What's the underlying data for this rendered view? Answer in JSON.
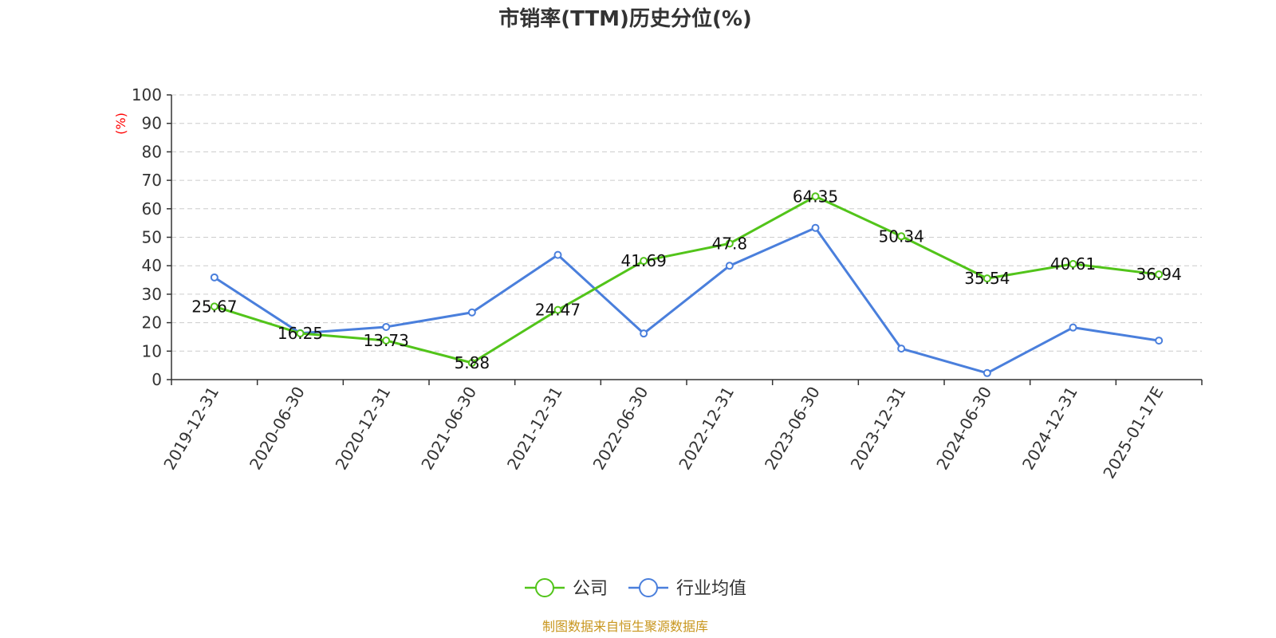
{
  "chart_data": {
    "type": "line",
    "title": "市销率(TTM)历史分位(%)",
    "ylabel": "(%)",
    "ylim": [
      0,
      100
    ],
    "yticks": [
      0,
      10,
      20,
      30,
      40,
      50,
      60,
      70,
      80,
      90,
      100
    ],
    "grid": true,
    "legend_position": "bottom-center",
    "categories": [
      "2019-12-31",
      "2020-06-30",
      "2020-12-31",
      "2021-06-30",
      "2021-12-31",
      "2022-06-30",
      "2022-12-31",
      "2023-06-30",
      "2023-12-31",
      "2024-06-30",
      "2024-12-31",
      "2025-01-17E"
    ],
    "series": [
      {
        "name": "公司",
        "color": "#52c41a",
        "show_labels": true,
        "values": [
          25.67,
          16.25,
          13.73,
          5.88,
          24.47,
          41.69,
          47.8,
          64.35,
          50.34,
          35.54,
          40.61,
          36.94
        ],
        "labels": [
          "25.67",
          "16.25",
          "13.73",
          "5.88",
          "24.47",
          "41.69",
          "47.8",
          "64.35",
          "50.34",
          "35.54",
          "40.61",
          "36.94"
        ]
      },
      {
        "name": "行业均值",
        "color": "#4a7fdc",
        "show_labels": false,
        "values": [
          35.9,
          16.3,
          18.5,
          23.6,
          43.8,
          16.2,
          40.0,
          53.3,
          10.9,
          2.3,
          18.3,
          13.7
        ]
      }
    ]
  },
  "source": "制图数据来自恒生聚源数据库",
  "colors": {
    "ylabel": "#ff0000",
    "source": "#c8961e",
    "axis": "#333333",
    "grid": "#cccccc"
  }
}
